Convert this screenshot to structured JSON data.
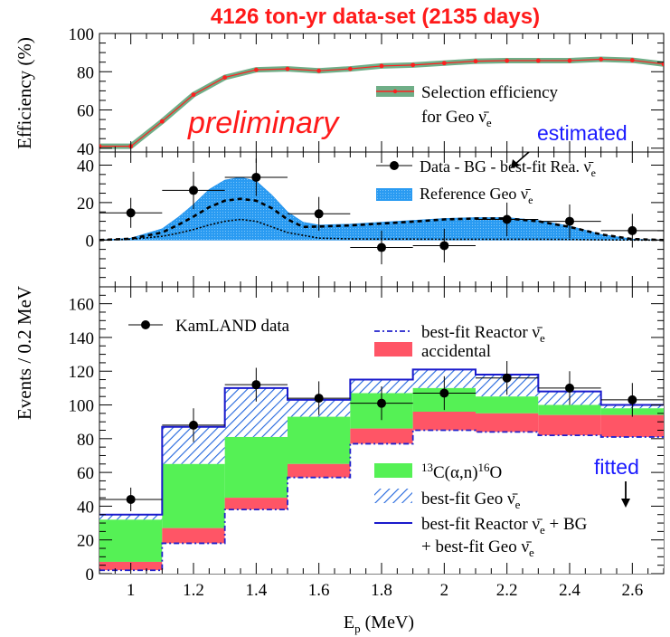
{
  "title": "4126 ton-yr data-set (2135 days)",
  "chart_data": [
    {
      "type": "line",
      "panel": "efficiency",
      "ylabel": "Efficiency (%)",
      "ylim": [
        38,
        100
      ],
      "yticks": [
        40,
        60,
        80,
        100
      ],
      "annotation": "preliminary",
      "legend": {
        "line1": "Selection efficiency",
        "line2": "for Geo ν̄e"
      },
      "series": [
        {
          "name": "Selection efficiency for Geo ν̄e",
          "x": [
            0.9,
            1.0,
            1.1,
            1.2,
            1.3,
            1.4,
            1.5,
            1.6,
            1.7,
            1.8,
            1.9,
            2.0,
            2.1,
            2.2,
            2.3,
            2.4,
            2.5,
            2.6,
            2.7
          ],
          "y": [
            41,
            41,
            54,
            68,
            77,
            81,
            81.5,
            80.5,
            81.5,
            83,
            83.5,
            84.5,
            85.5,
            85.8,
            85.8,
            85.8,
            86.5,
            86,
            84
          ]
        }
      ]
    },
    {
      "type": "scatter",
      "panel": "difference",
      "ylim": [
        -25,
        47
      ],
      "yticks": [
        0,
        20,
        40
      ],
      "annotation": "estimated",
      "legend": {
        "data": "Data - BG - best-fit Rea. ν̄e",
        "ref": "Reference Geo ν̄e"
      },
      "points": {
        "x": [
          1.0,
          1.2,
          1.4,
          1.6,
          1.8,
          2.0,
          2.2,
          2.4,
          2.6
        ],
        "y": [
          14.5,
          26.5,
          33.5,
          14,
          -4,
          -3,
          11,
          10,
          5
        ],
        "xerr": 0.1,
        "yerr": [
          8,
          10,
          10,
          9,
          9,
          9,
          9,
          9,
          9
        ]
      },
      "reference_curve": {
        "x": [
          0.9,
          1.0,
          1.1,
          1.15,
          1.2,
          1.25,
          1.3,
          1.35,
          1.4,
          1.45,
          1.5,
          1.55,
          1.6,
          1.7,
          1.8,
          1.9,
          2.0,
          2.1,
          2.2,
          2.3,
          2.4,
          2.5,
          2.6,
          2.7
        ],
        "total": [
          0,
          1,
          6,
          12,
          19,
          27,
          32,
          33.5,
          31.5,
          24,
          15,
          9.5,
          8,
          8.5,
          9.5,
          10.5,
          11.5,
          12,
          12,
          10.5,
          7.5,
          3,
          0.5,
          0
        ],
        "U": [
          0,
          0.7,
          4,
          8,
          12.5,
          17.5,
          21,
          22,
          21,
          17,
          11,
          7,
          7.2,
          7.8,
          8.8,
          9.8,
          11,
          11.5,
          11.5,
          10,
          7,
          3,
          0.5,
          0
        ],
        "Th": [
          0,
          0.4,
          2,
          3.6,
          5.6,
          8,
          10,
          11,
          10,
          7,
          4,
          2.5,
          1,
          0.6,
          0.5,
          0.5,
          0.4,
          0.4,
          0.4,
          0.4,
          0.3,
          0.1,
          0,
          0
        ]
      }
    },
    {
      "type": "bar",
      "panel": "spectrum",
      "ylabel": "Events / 0.2 MeV",
      "xlabel": "Ep (MeV)",
      "xlim": [
        0.9,
        2.7
      ],
      "xticks": [
        1,
        1.2,
        1.4,
        1.6,
        1.8,
        2,
        2.2,
        2.4,
        2.6
      ],
      "ylim": [
        0,
        170
      ],
      "yticks": [
        0,
        20,
        40,
        60,
        80,
        100,
        120,
        140,
        160
      ],
      "annotation": "fitted",
      "bin_edges": [
        0.9,
        1.1,
        1.3,
        1.5,
        1.7,
        1.9,
        2.1,
        2.3,
        2.5,
        2.7
      ],
      "stack": [
        {
          "name": "best-fit Reactor ν̄e",
          "values": [
            2,
            18,
            38,
            57,
            77,
            85,
            84,
            82,
            81
          ]
        },
        {
          "name": "accidental",
          "values": [
            7,
            27,
            45,
            65,
            86,
            96,
            95,
            94,
            94
          ]
        },
        {
          "name": "13C(α,n)16O",
          "values": [
            32,
            65,
            81,
            93,
            107,
            110,
            105,
            100,
            98
          ]
        },
        {
          "name": "best-fit Geo ν̄e",
          "values": [
            35,
            87,
            110,
            103,
            115,
            121,
            118,
            108,
            100
          ]
        }
      ],
      "data": {
        "name": "KamLAND data",
        "x": [
          1.0,
          1.2,
          1.4,
          1.6,
          1.8,
          2.0,
          2.2,
          2.4,
          2.6
        ],
        "y": [
          44,
          88,
          112,
          104,
          101,
          107,
          116,
          110,
          103
        ],
        "xerr": 0.1,
        "yerr": [
          7,
          10,
          10,
          10,
          10,
          10,
          10,
          10,
          10
        ]
      },
      "legend": {
        "data": "KamLAND data",
        "reactor": "best-fit Reactor ν̄e",
        "accidental": "accidental",
        "c13": "13C(α,n)16O",
        "geo": "best-fit Geo ν̄e",
        "sum1": "best-fit Reactor ν̄e + BG",
        "sum2": "+ best-fit Geo ν̄e"
      }
    }
  ],
  "colors": {
    "title": "#ff1a1a",
    "preliminary": "#ff1a1a",
    "estimated": "#1a1aff",
    "fitted": "#1a1aff",
    "eff_band": "#6fae87",
    "eff_point": "#ff2020",
    "geo_fill": "#2a9bf2",
    "c13": "#55f155",
    "accidental": "#ff5566",
    "geo_hatch": "#2266dd",
    "sum_line": "#1a1acc",
    "reactor_line": "#2222cc"
  }
}
